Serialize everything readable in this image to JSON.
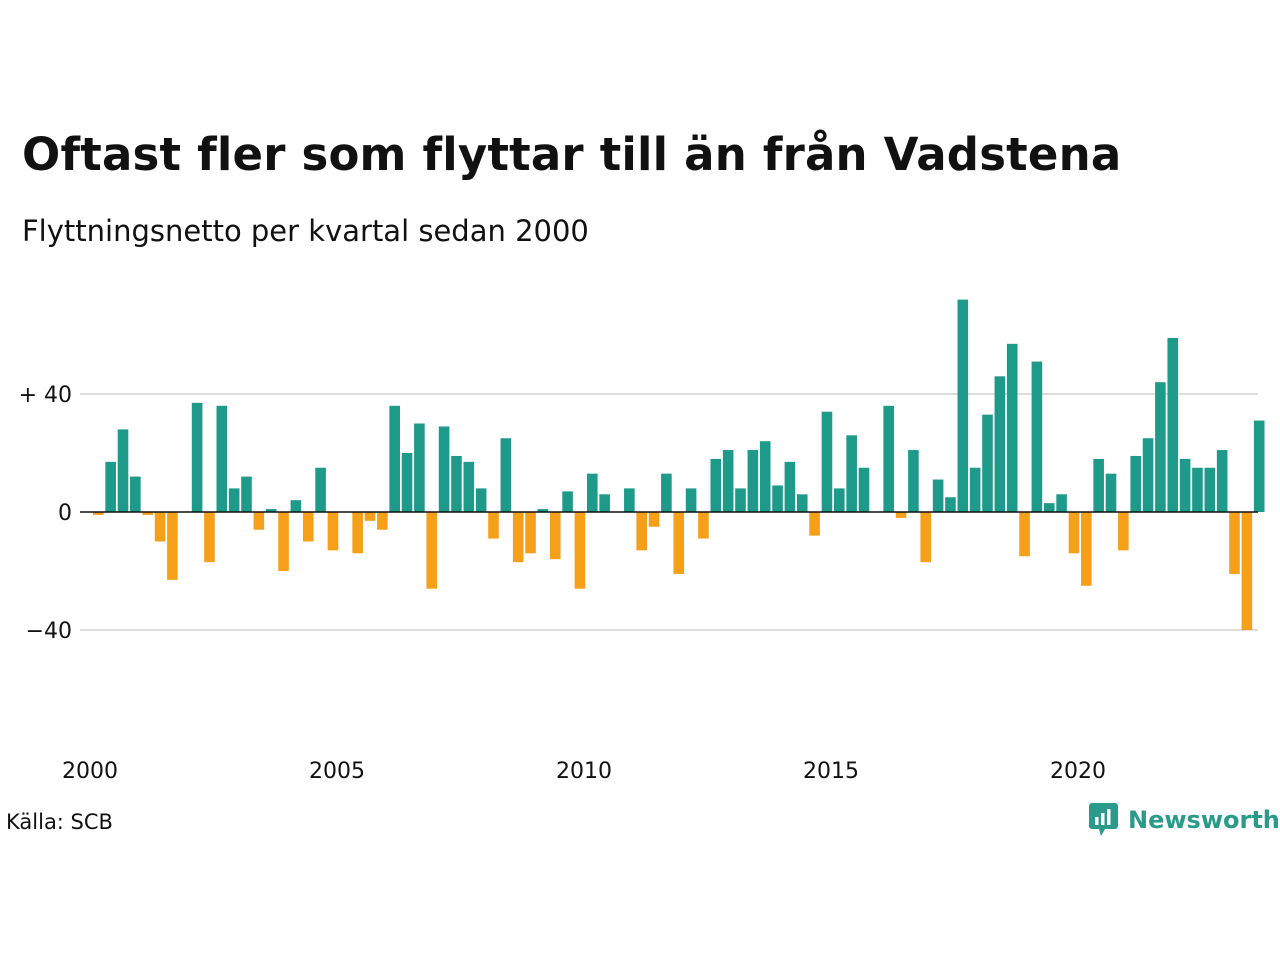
{
  "title": "Oftast fler som flyttar till än från Vadstena",
  "subtitle": "Flyttningsnetto per kvartal sedan 2000",
  "source": "Källa: SCB",
  "brand": {
    "name": "Newsworthy",
    "color": "#2a9a8b"
  },
  "colors": {
    "positive": "#1e9a8a",
    "negative": "#f6a01a",
    "grid": "#dddddd",
    "zero": "#111111"
  },
  "chart_data": {
    "type": "bar",
    "x_start": "2000",
    "ylim": [
      -40,
      74
    ],
    "yticks": [
      {
        "value": 40,
        "label": "+ 40"
      },
      {
        "value": 0,
        "label": "0"
      },
      {
        "value": -40,
        "label": "−40"
      }
    ],
    "xticks": [
      "2000",
      "2005",
      "2010",
      "2015",
      "2020"
    ],
    "grid": true,
    "categories": [
      "2000 K1",
      "2000 K2",
      "2000 K3",
      "2000 K4",
      "2001 K1",
      "2001 K2",
      "2001 K3",
      "2001 K4",
      "2002 K1",
      "2002 K2",
      "2002 K3",
      "2002 K4",
      "2003 K1",
      "2003 K2",
      "2003 K3",
      "2003 K4",
      "2004 K1",
      "2004 K2",
      "2004 K3",
      "2004 K4",
      "2005 K1",
      "2005 K2",
      "2005 K3",
      "2005 K4",
      "2006 K1",
      "2006 K2",
      "2006 K3",
      "2006 K4",
      "2007 K1",
      "2007 K2",
      "2007 K3",
      "2007 K4",
      "2008 K1",
      "2008 K2",
      "2008 K3",
      "2008 K4",
      "2009 K1",
      "2009 K2",
      "2009 K3",
      "2009 K4",
      "2010 K1",
      "2010 K2",
      "2010 K3",
      "2010 K4",
      "2011 K1",
      "2011 K2",
      "2011 K3",
      "2011 K4",
      "2012 K1",
      "2012 K2",
      "2012 K3",
      "2012 K4",
      "2013 K1",
      "2013 K2",
      "2013 K3",
      "2013 K4",
      "2014 K1",
      "2014 K2",
      "2014 K3",
      "2014 K4",
      "2015 K1",
      "2015 K2",
      "2015 K3",
      "2015 K4",
      "2016 K1",
      "2016 K2",
      "2016 K3",
      "2016 K4",
      "2017 K1",
      "2017 K2",
      "2017 K3",
      "2017 K4",
      "2018 K1",
      "2018 K2",
      "2018 K3",
      "2018 K4",
      "2019 K1",
      "2019 K2",
      "2019 K3",
      "2019 K4",
      "2020 K1",
      "2020 K2",
      "2020 K3",
      "2020 K4",
      "2021 K1",
      "2021 K2",
      "2021 K3",
      "2021 K4",
      "2022 K1",
      "2022 K2",
      "2022 K3",
      "2022 K4",
      "2023 K1",
      "2023 K2",
      "2023 K3"
    ],
    "values": [
      -1,
      17,
      28,
      12,
      -1,
      -10,
      -23,
      0,
      37,
      -17,
      36,
      8,
      12,
      -6,
      1,
      -20,
      4,
      -10,
      15,
      -13,
      0,
      -14,
      -3,
      -6,
      36,
      20,
      30,
      -26,
      29,
      19,
      17,
      8,
      -9,
      25,
      -17,
      -14,
      1,
      -16,
      7,
      -26,
      13,
      6,
      0,
      8,
      -13,
      -5,
      13,
      -21,
      8,
      -9,
      18,
      21,
      8,
      21,
      24,
      9,
      17,
      6,
      -8,
      34,
      8,
      26,
      15,
      0,
      36,
      -2,
      21,
      -17,
      11,
      5,
      72,
      15,
      33,
      46,
      57,
      -15,
      51,
      3,
      6,
      -14,
      -25,
      18,
      13,
      -13,
      19,
      25,
      44,
      59,
      18,
      15,
      15,
      21,
      -21,
      -40,
      31
    ]
  }
}
